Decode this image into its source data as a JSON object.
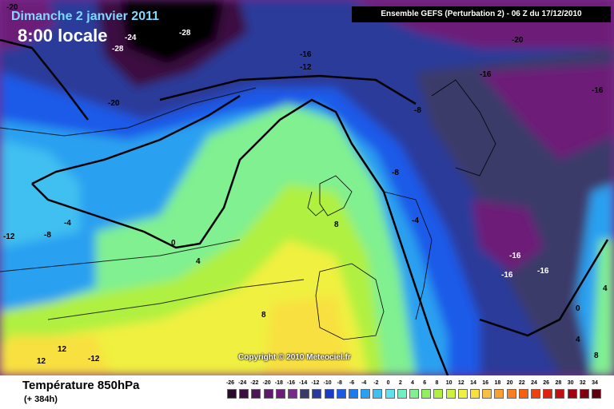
{
  "header": {
    "date": "Dimanche 2 janvier 2011",
    "time": "8:00 locale",
    "model": "Ensemble GEFS (Perturbation 2)  -  06 Z du 17/12/2010"
  },
  "map": {
    "copyright": "Copyright © 2010 Meteociel.fr",
    "contour_labels": [
      "-20",
      "-24",
      "-28",
      "-28",
      "-20",
      "-16",
      "-12",
      "-20",
      "-16",
      "-16",
      "-8",
      "-8",
      "-4",
      "-12",
      "-8",
      "-4",
      "0",
      "4",
      "8",
      "8",
      "12",
      "12",
      "-12",
      "-16",
      "-16",
      "-16",
      "0",
      "4",
      "8",
      "4"
    ],
    "colors": {
      "background_sea": "#6aaee8",
      "line": "#000000"
    }
  },
  "footer": {
    "parameter": "Température 850hPa",
    "range": "(+ 384h)"
  },
  "legend": {
    "ticks": [
      "-26",
      "-24",
      "-22",
      "-20",
      "-18",
      "-16",
      "-14",
      "-12",
      "-10",
      "-8",
      "-6",
      "-4",
      "-2",
      "0",
      "2",
      "4",
      "6",
      "8",
      "10",
      "12",
      "14",
      "16",
      "18",
      "20",
      "22",
      "24",
      "26",
      "28",
      "30",
      "32",
      "34"
    ],
    "colors": [
      "#2a0a2a",
      "#3a1040",
      "#4d1656",
      "#5e1a6a",
      "#6d1a78",
      "#7a2a8e",
      "#3a3a6a",
      "#2a3a9a",
      "#1a3ac8",
      "#1a5ae8",
      "#1a7af0",
      "#2aa0f0",
      "#40c0f0",
      "#60e0f0",
      "#70f0c0",
      "#80f090",
      "#90f060",
      "#b0f040",
      "#d0f040",
      "#f0f040",
      "#f8e040",
      "#f8c040",
      "#f8a030",
      "#f88020",
      "#f86010",
      "#f04010",
      "#e02010",
      "#c01010",
      "#a00010",
      "#800010",
      "#600010"
    ]
  }
}
